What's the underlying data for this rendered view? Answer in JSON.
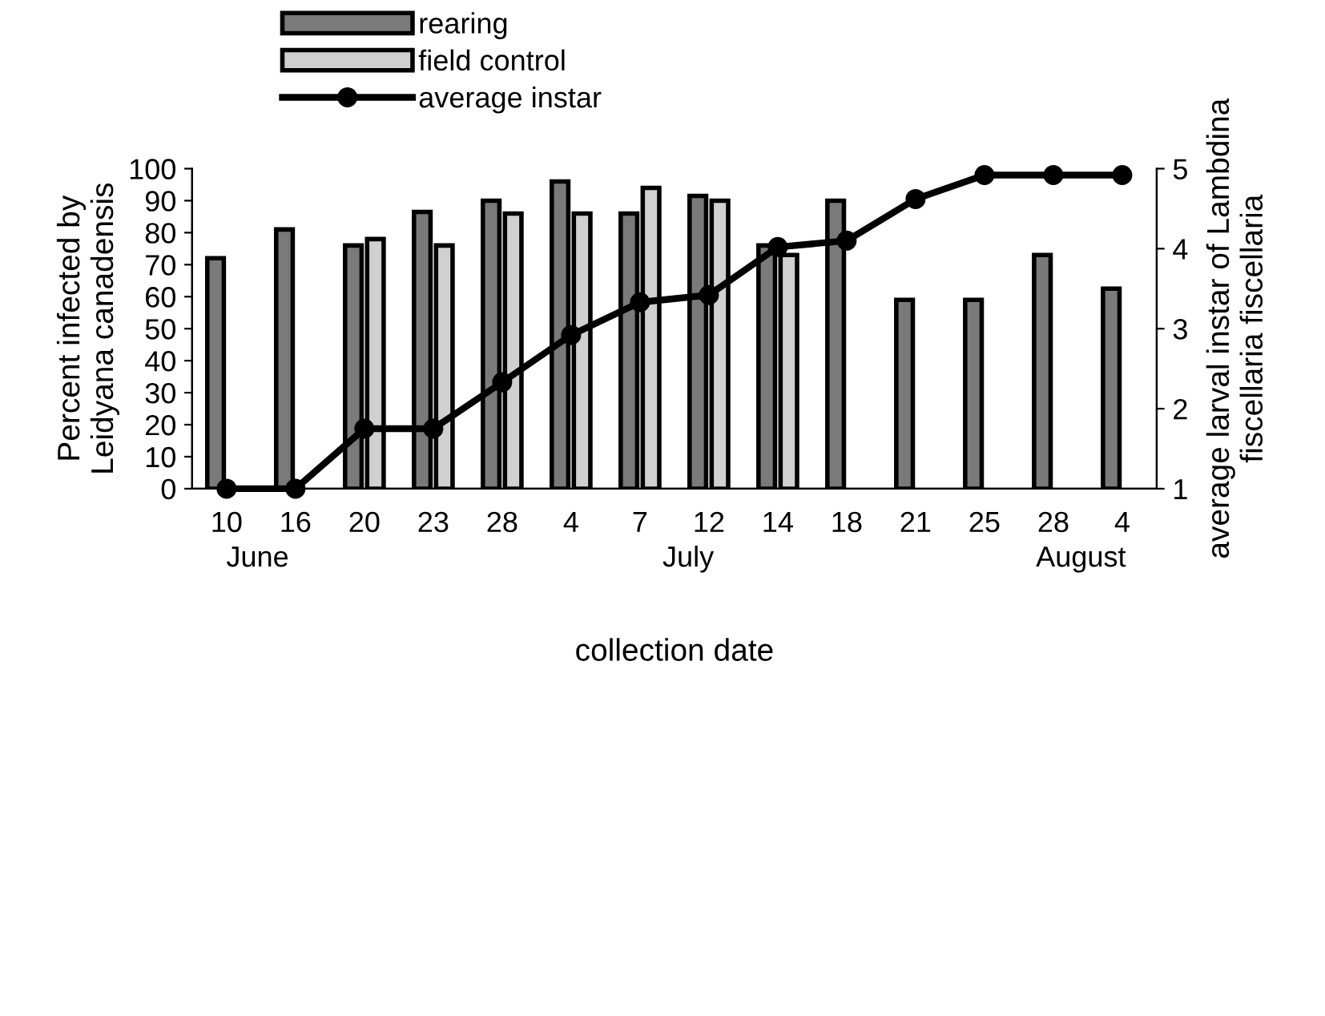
{
  "chart_data": {
    "type": "bar",
    "xlabel": "collection date",
    "ylabel": "Percent infected by\nLeidyana canadensis",
    "y2label": "average larval instar of Lambdina\nfiscellaria fiscellaria",
    "categories": [
      "10",
      "16",
      "20",
      "23",
      "28",
      "4",
      "7",
      "12",
      "14",
      "18",
      "21",
      "25",
      "28",
      "4"
    ],
    "series": [
      {
        "name": "rearing",
        "color": "#7a7a7a",
        "values": [
          72,
          81,
          76,
          86.5,
          90,
          96,
          86,
          91.5,
          76,
          90,
          59,
          59,
          73,
          62.5
        ]
      },
      {
        "name": "field control",
        "color": "#d0d0d0",
        "values": [
          null,
          null,
          78,
          76,
          86,
          86,
          94,
          90,
          73,
          null,
          null,
          null,
          null,
          null
        ]
      },
      {
        "name": "average instar",
        "type": "line",
        "axis": "y2",
        "color": "#000000",
        "marker": "circle",
        "values": [
          1,
          1,
          1.75,
          1.75,
          2.33,
          2.92,
          3.33,
          3.42,
          4.02,
          4.1,
          4.62,
          4.92,
          4.92,
          4.92
        ]
      }
    ],
    "annotations": [
      "June",
      "July",
      "August"
    ],
    "ylim": [
      0,
      100
    ],
    "yticks": [
      0,
      10,
      20,
      30,
      40,
      50,
      60,
      70,
      80,
      90,
      100
    ],
    "y2lim": [
      1,
      5
    ],
    "y2ticks": [
      1,
      2,
      3,
      4,
      5
    ],
    "legend": "top left",
    "grid": false
  }
}
